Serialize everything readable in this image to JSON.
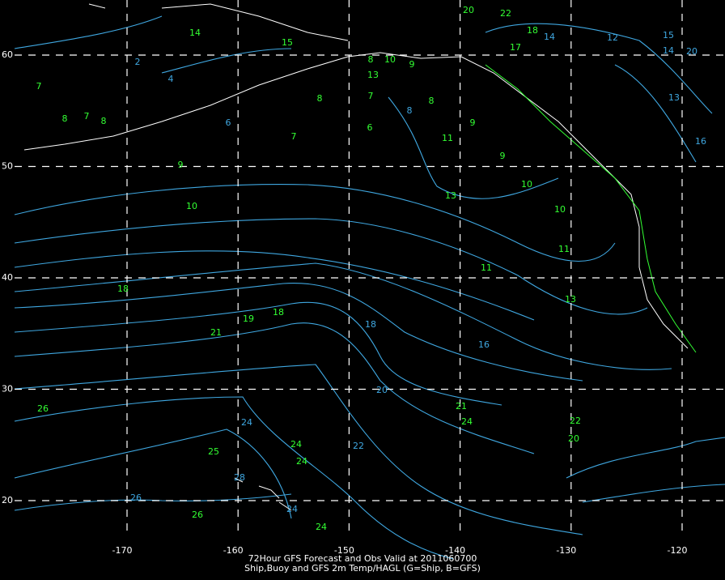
{
  "map": {
    "title": [
      "72Hour GFS Forecast and Obs Valid at 2011060700",
      "Ship,Buoy and GFS 2m Temp/HAGL (G=Ship, B=GFS)"
    ],
    "lon_ticks": [
      -170,
      -160,
      -150,
      -140,
      -130,
      -120
    ],
    "lat_ticks": [
      60,
      50,
      40,
      30,
      20
    ],
    "ship_obs": [
      26,
      25,
      24,
      24,
      24,
      26,
      21,
      24,
      22,
      20,
      21,
      19,
      18,
      18,
      11,
      11,
      13,
      10,
      9,
      7,
      6,
      7,
      8,
      11,
      9,
      9,
      10,
      13,
      10,
      8,
      8,
      7,
      8,
      7,
      13,
      9,
      10,
      8,
      20,
      22,
      18,
      17,
      14,
      15
    ],
    "gfs_labels": [
      24,
      22,
      20,
      18,
      16,
      26,
      28,
      24,
      4,
      2,
      6,
      8,
      14,
      12,
      15,
      20,
      14,
      16,
      13
    ]
  }
}
